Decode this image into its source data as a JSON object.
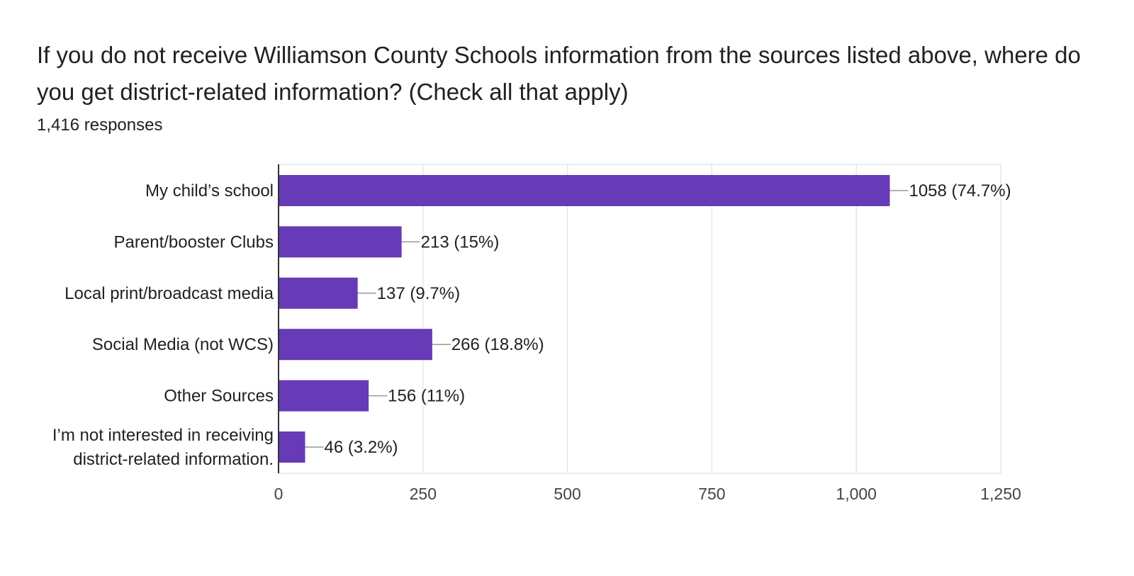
{
  "title": "If you do not receive Williamson County Schools information from the sources listed above, where do you get district-related information? (Check all that apply)",
  "responses": "1,416 responses",
  "colors": {
    "bar": "#673ab7",
    "grid": "#e6e6e6",
    "axis": "#333333",
    "leader": "#999999",
    "text": "#202124"
  },
  "chart_data": {
    "type": "bar",
    "orientation": "horizontal",
    "title": "If you do not receive Williamson County Schools information from the sources listed above, where do you get district-related information? (Check all that apply)",
    "xlabel": "",
    "ylabel": "",
    "categories": [
      [
        "My child’s school"
      ],
      [
        "Parent/booster Clubs"
      ],
      [
        "Local print/broadcast media"
      ],
      [
        "Social Media (not WCS)"
      ],
      [
        "Other Sources"
      ],
      [
        "I’m not interested in receiving",
        "district-related information."
      ]
    ],
    "values": [
      1058,
      213,
      137,
      266,
      156,
      46
    ],
    "data_labels": [
      "1058 (74.7%)",
      "213 (15%)",
      "137 (9.7%)",
      "266 (18.8%)",
      "156 (11%)",
      "46 (3.2%)"
    ],
    "xlim": [
      0,
      1250
    ],
    "ticks": [
      0,
      250,
      500,
      750,
      1000,
      1250
    ],
    "tick_labels": [
      "0",
      "250",
      "500",
      "750",
      "1,000",
      "1,250"
    ],
    "grid": true,
    "legend": "none"
  }
}
